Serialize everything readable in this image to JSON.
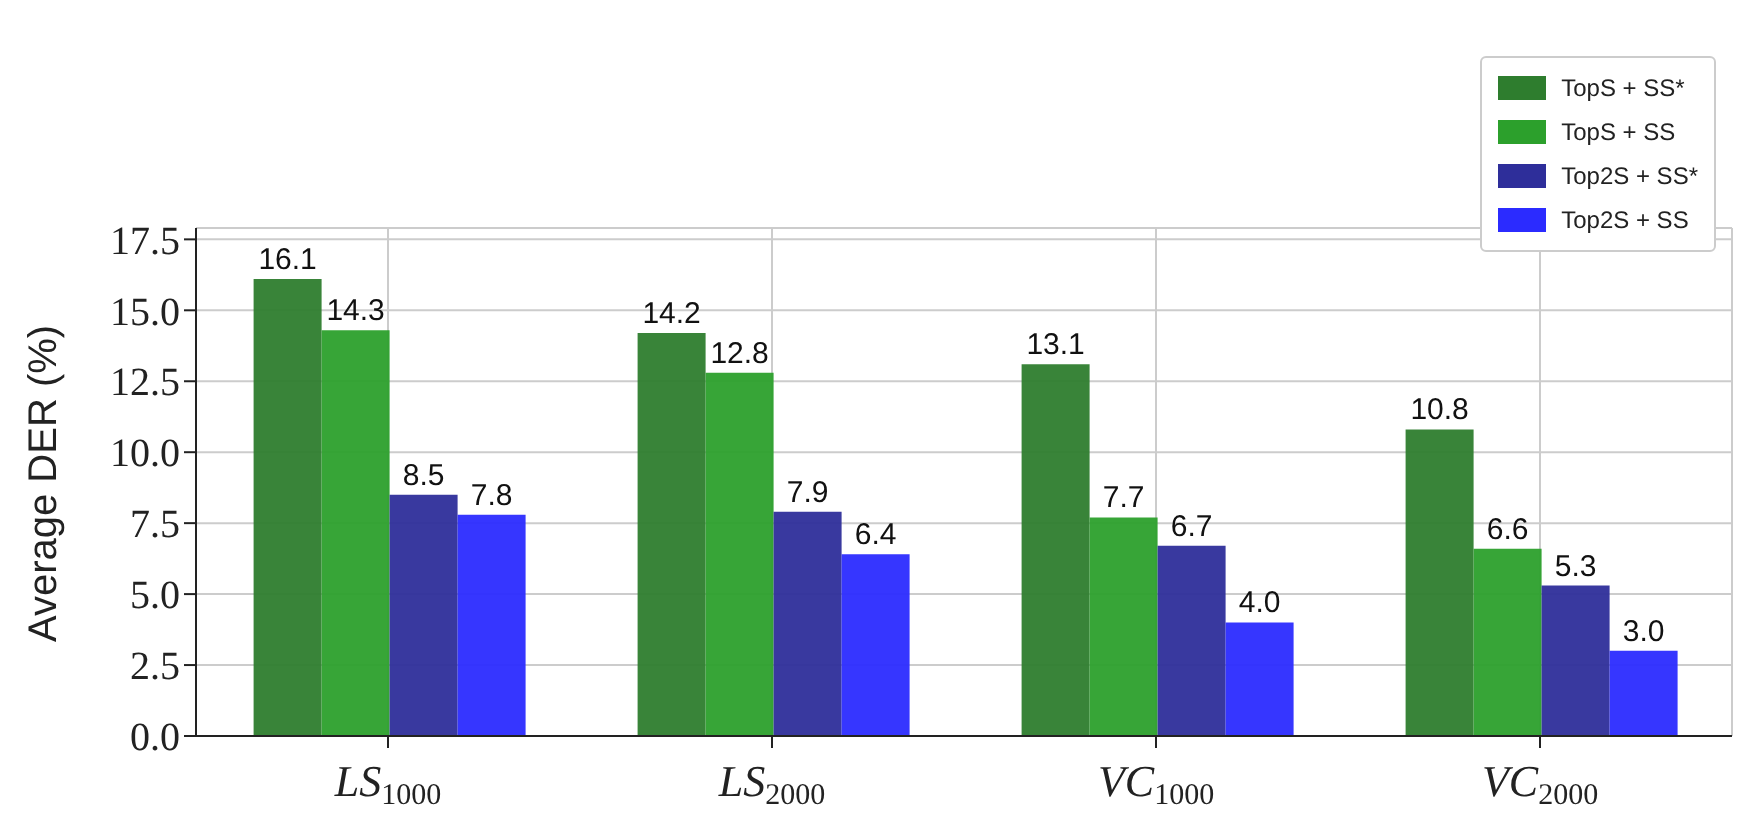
{
  "chart_data": {
    "type": "bar",
    "ylabel": "Average DER (%)",
    "categories": [
      "LS$_{1000}$",
      "LS$_{2000}$",
      "VC$_{1000}$",
      "VC$_{2000}$"
    ],
    "series": [
      {
        "name": "TopS + SS*",
        "color": "#2e7d2e",
        "values": [
          16.1,
          14.2,
          13.1,
          10.8
        ],
        "value_labels": [
          "16.1",
          "14.2",
          "13.1",
          "10.8"
        ]
      },
      {
        "name": "TopS + SS",
        "color": "#2ca02c",
        "values": [
          14.3,
          12.8,
          7.7,
          6.6
        ],
        "value_labels": [
          "14.3",
          "12.8",
          "7.7",
          "6.6"
        ]
      },
      {
        "name": "Top2S + SS*",
        "color": "#2e2e9a",
        "values": [
          8.5,
          7.9,
          6.7,
          5.3
        ],
        "value_labels": [
          "8.5",
          "7.9",
          "6.7",
          "5.3"
        ]
      },
      {
        "name": "Top2S + SS",
        "color": "#2b2bff",
        "values": [
          7.8,
          6.4,
          4.0,
          3.0
        ],
        "value_labels": [
          "7.8",
          "6.4",
          "4.0",
          "3.0"
        ]
      }
    ],
    "ylim": [
      0,
      17.9
    ],
    "yticks": [
      {
        "value": 0,
        "label": "0.0"
      },
      2.5,
      {
        "value": 5,
        "label": "5.0"
      },
      7.5,
      {
        "value": 10,
        "label": "10.0"
      },
      12.5,
      {
        "value": 15,
        "label": "15.0"
      },
      17.5
    ],
    "grid": true,
    "legend": "top right"
  }
}
